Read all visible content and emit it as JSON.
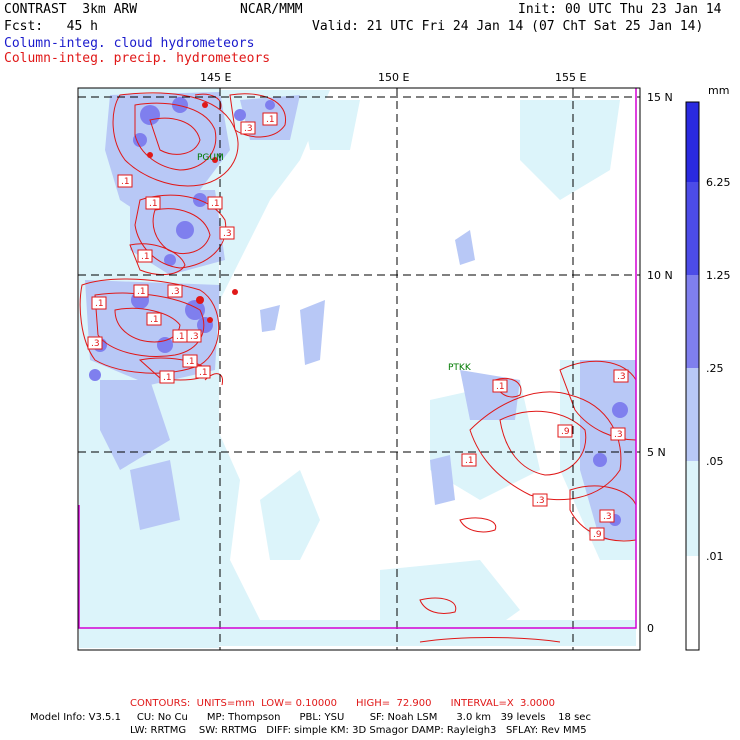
{
  "header": {
    "model_title": "CONTRAST  3km ARW",
    "org": "NCAR/MMM",
    "init": "Init: 00 UTC Thu 23 Jan 14",
    "fcst": "Fcst:   45 h",
    "valid": "Valid: 21 UTC Fri 24 Jan 14 (07 ChT Sat 25 Jan 14)",
    "field_blue": "Column-integ. cloud hydrometeors",
    "field_red": "Column-integ. precip. hydrometeors"
  },
  "map": {
    "lon_labels": [
      "145 E",
      "150 E",
      "155 E"
    ],
    "lat_labels": [
      "15 N",
      "10 N",
      "5 N",
      "0"
    ],
    "stations": [
      "PGUM",
      "PTKK"
    ],
    "contour_labels": [
      ".1",
      ".3",
      ".1",
      ".1",
      ".1",
      ".3",
      ".1",
      ".1",
      ".3",
      ".1",
      ".1",
      ".3",
      ".3",
      ".1",
      ".1",
      ".1",
      ".3",
      ".1",
      ".3",
      ".9",
      ".1",
      ".1",
      ".3",
      ".3",
      ".9"
    ]
  },
  "colorbar": {
    "unit": "mm",
    "levels": [
      "6.25",
      "1.25",
      ".25",
      ".05",
      ".01"
    ],
    "colors": [
      "#2a2ae0",
      "#4c4ce8",
      "#7f7fee",
      "#b8c8f6",
      "#dcf4fa",
      "#ffffff"
    ]
  },
  "footer": {
    "contours": "CONTOURS:  UNITS=mm  LOW= 0.10000      HIGH=  72.900      INTERVAL=X  3.0000",
    "line1": "Model Info: V3.5.1     CU: No Cu      MP: Thompson      PBL: YSU        SF: Noah LSM      3.0 km   39 levels    18 sec",
    "line2": "LW: RRTMG    SW: RRTMG   DIFF: simple KM: 3D Smagor DAMP: Rayleigh3   SFLAY: Rev MM5"
  }
}
